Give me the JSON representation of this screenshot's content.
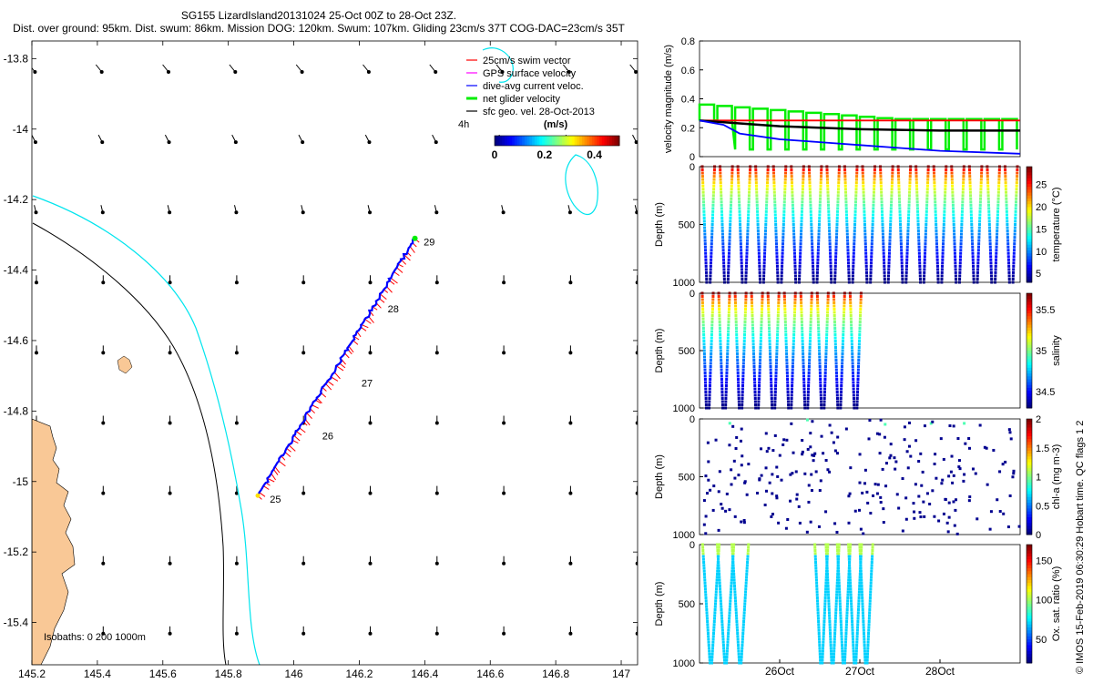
{
  "header": {
    "title": "SG155 LizardIsland20131024 25-Oct 00Z to 28-Oct 23Z.",
    "subtitle": "Dist. over ground: 95km. Dist. swum: 86km. Mission DOG: 120km. Swum: 107km. Gliding 23cm/s 37T COG-DAC=23cm/s 35T"
  },
  "side_note": "© IMOS 15-Feb-2019 06:30:29 Hobart time. QC flags 1 2",
  "colors": {
    "swim": "#ff0000",
    "gps": "#ff00ff",
    "dac": "#0000ff",
    "net": "#00ee00",
    "geo": "#000000",
    "coast": "#00e5ee",
    "land": "#f9c896"
  },
  "chart_data": [
    {
      "type": "scatter",
      "name": "map",
      "xlim": [
        145.2,
        147.05
      ],
      "ylim": [
        -15.52,
        -13.75
      ],
      "x_ticks": [
        "145.2",
        "145.4",
        "145.6",
        "145.8",
        "146",
        "146.2",
        "146.4",
        "146.6",
        "146.8",
        "147"
      ],
      "y_ticks": [
        "-13.8",
        "-14",
        "-14.2",
        "-14.4",
        "-14.6",
        "-14.8",
        "-15",
        "-15.2",
        "-15.4"
      ],
      "legend": [
        {
          "label": "25cm/s swim vector",
          "color": "#ff0000"
        },
        {
          "label": "GPS surface velocity",
          "color": "#ff00ff"
        },
        {
          "label": "dive-avg current veloc.",
          "color": "#0000ff"
        },
        {
          "label": "net glider velocity",
          "color": "#00ee00"
        },
        {
          "label": "sfc geo. vel. 28-Oct-2013",
          "color": "#000000"
        }
      ],
      "legend_note": "4h",
      "colorbar": {
        "label": "(m/s)",
        "ticks": [
          "0",
          "0.2",
          "0.4"
        ],
        "range": [
          0,
          0.5
        ]
      },
      "isobaths_label": "Isobaths: 0   200   1000m",
      "track_start": [
        145.89,
        -15.04
      ],
      "track_end": [
        146.37,
        -14.31
      ],
      "day_labels": [
        {
          "text": "25",
          "x": 145.91,
          "y": -15.05
        },
        {
          "text": "26",
          "x": 146.07,
          "y": -14.87
        },
        {
          "text": "27",
          "x": 146.19,
          "y": -14.72
        },
        {
          "text": "28",
          "x": 146.27,
          "y": -14.51
        },
        {
          "text": "29",
          "x": 146.38,
          "y": -14.32
        }
      ]
    },
    {
      "type": "line",
      "name": "velocity",
      "ylabel": "velocity magnitude (m/s)",
      "ylim": [
        0,
        0.8
      ],
      "y_ticks": [
        "0",
        "0.2",
        "0.4",
        "0.6",
        "0.8"
      ],
      "xlim": [
        25,
        29
      ],
      "series": [
        {
          "color": "#ff0000",
          "x": [
            25,
            26,
            27,
            28,
            29
          ],
          "y": [
            0.25,
            0.25,
            0.25,
            0.25,
            0.25
          ]
        },
        {
          "color": "#000000",
          "x": [
            25,
            25.5,
            26,
            27,
            28,
            29
          ],
          "y": [
            0.25,
            0.23,
            0.21,
            0.19,
            0.18,
            0.18
          ]
        },
        {
          "color": "#0000ff",
          "x": [
            25,
            25.3,
            25.5,
            26,
            26.5,
            27,
            27.5,
            28,
            29
          ],
          "y": [
            0.25,
            0.22,
            0.16,
            0.12,
            0.1,
            0.08,
            0.06,
            0.04,
            0.02
          ]
        },
        {
          "color": "#00ee00",
          "x": [
            25,
            26,
            27,
            28,
            29
          ],
          "y": [
            0.36,
            0.3,
            0.27,
            0.26,
            0.26
          ]
        }
      ]
    },
    {
      "type": "scatter",
      "name": "temperature",
      "ylabel": "Depth (m)",
      "cbar_label": "temperature (°C)",
      "cbar_ticks": [
        "5",
        "10",
        "15",
        "20",
        "25"
      ],
      "cbar_range": [
        3,
        29
      ],
      "colormap": "jet",
      "ylim": [
        0,
        1000
      ],
      "y_ticks": [
        "0",
        "500",
        "1000"
      ],
      "dives_start": 25,
      "dives_end": 29,
      "n_dives": 18
    },
    {
      "type": "scatter",
      "name": "salinity",
      "ylabel": "Depth (m)",
      "cbar_label": "salinity",
      "cbar_ticks": [
        "34.5",
        "35",
        "35.5"
      ],
      "cbar_range": [
        34.3,
        35.7
      ],
      "colormap": "jet",
      "ylim": [
        0,
        1000
      ],
      "y_ticks": [
        "0",
        "500",
        "1000"
      ],
      "dives_start": 25,
      "dives_end": 27.05,
      "n_dives": 10
    },
    {
      "type": "scatter",
      "name": "chla",
      "ylabel": "Depth (m)",
      "cbar_label": "chl-a (mg m-3)",
      "cbar_ticks": [
        "0",
        "0.5",
        "1",
        "1.5",
        "2"
      ],
      "cbar_range": [
        0,
        2
      ],
      "colormap": "jet",
      "ylim": [
        0,
        1000
      ],
      "y_ticks": [
        "0",
        "500",
        "1000"
      ],
      "dives_start": 25,
      "dives_end": 29,
      "n_dives": 18
    },
    {
      "type": "scatter",
      "name": "oxygen",
      "ylabel": "Depth (m)",
      "cbar_label": "Ox. sat. ratio (%)",
      "cbar_ticks": [
        "50",
        "100",
        "150"
      ],
      "cbar_range": [
        20,
        170
      ],
      "colormap": "jet",
      "ylim": [
        0,
        1000
      ],
      "y_ticks": [
        "0",
        "500",
        "1000"
      ],
      "x_ticks": [
        "26Oct",
        "27Oct",
        "28Oct"
      ],
      "x_tick_values": [
        26,
        27,
        28
      ],
      "xlim": [
        25,
        29
      ]
    }
  ]
}
